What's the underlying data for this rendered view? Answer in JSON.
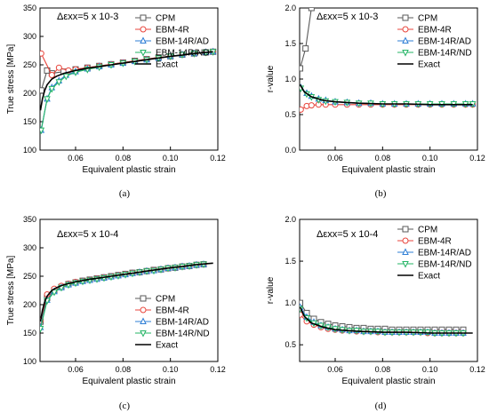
{
  "panel_captions": [
    "(a)",
    "(b)",
    "(c)",
    "(d)"
  ],
  "colors": {
    "CPM": "#5a5a5a",
    "EBM-4R": "#e8453c",
    "EBM-14R/AD": "#2f7fd6",
    "EBM-14R/ND": "#25b566",
    "Exact": "#000000"
  },
  "markers": {
    "CPM": "square",
    "EBM-4R": "circle",
    "EBM-14R/AD": "triangle-up",
    "EBM-14R/ND": "triangle-down",
    "Exact": "none"
  },
  "chart_data": [
    {
      "type": "line",
      "annotation": "Δεxx=5 x 10-3",
      "xlabel": "Equivalent plastic strain",
      "ylabel": "True stress [MPa]",
      "xlim": [
        0.045,
        0.12
      ],
      "ylim": [
        100,
        350
      ],
      "xticks": [
        0.06,
        0.08,
        0.1,
        0.12
      ],
      "xticklabels": [
        "0.06",
        "0.08",
        "0.10",
        "0.12"
      ],
      "yticks": [
        100,
        150,
        200,
        250,
        300,
        350
      ],
      "yticklabels": [
        "100",
        "150",
        "200",
        "250",
        "300",
        "350"
      ],
      "legend": "right",
      "series": [
        {
          "name": "CPM",
          "x": [
            0.0455,
            0.048,
            0.05,
            0.055,
            0.06,
            0.065,
            0.07,
            0.075,
            0.08,
            0.085,
            0.09,
            0.095,
            0.1,
            0.105,
            0.11,
            0.115,
            0.118
          ],
          "y": [
            205,
            240,
            235,
            238,
            242,
            245,
            248,
            251,
            254,
            257,
            260,
            263,
            265,
            268,
            270,
            272,
            273
          ]
        },
        {
          "name": "EBM-4R",
          "x": [
            0.0455,
            0.05,
            0.053,
            0.057,
            0.06,
            0.065,
            0.07,
            0.075,
            0.08,
            0.085,
            0.09,
            0.095,
            0.1,
            0.105,
            0.11,
            0.115,
            0.118
          ],
          "y": [
            270,
            232,
            245,
            240,
            242,
            245,
            248,
            251,
            254,
            257,
            260,
            263,
            265,
            268,
            270,
            272,
            273
          ]
        },
        {
          "name": "EBM-14R/AD",
          "x": [
            0.0455,
            0.048,
            0.05,
            0.053,
            0.056,
            0.06,
            0.065,
            0.07,
            0.075,
            0.08,
            0.085,
            0.09,
            0.095,
            0.1,
            0.105,
            0.11,
            0.115,
            0.118
          ],
          "y": [
            135,
            190,
            210,
            222,
            232,
            238,
            243,
            247,
            250,
            253,
            256,
            259,
            262,
            265,
            268,
            270,
            272,
            273
          ]
        },
        {
          "name": "EBM-14R/ND",
          "x": [
            0.0455,
            0.048,
            0.05,
            0.053,
            0.056,
            0.06,
            0.065,
            0.07,
            0.075,
            0.08,
            0.085,
            0.09,
            0.095,
            0.1,
            0.105,
            0.11,
            0.115,
            0.118
          ],
          "y": [
            135,
            190,
            208,
            220,
            230,
            237,
            242,
            246,
            250,
            253,
            256,
            259,
            262,
            265,
            268,
            270,
            272,
            273
          ]
        },
        {
          "name": "Exact",
          "x": [
            0.0452,
            0.046,
            0.047,
            0.048,
            0.05,
            0.052,
            0.055,
            0.06,
            0.065,
            0.07,
            0.075,
            0.08,
            0.085,
            0.09,
            0.095,
            0.1,
            0.105,
            0.11,
            0.115,
            0.118
          ],
          "y": [
            170,
            190,
            205,
            215,
            225,
            230,
            235,
            240,
            244,
            247,
            250,
            253,
            256,
            259,
            262,
            265,
            267,
            270,
            272,
            273
          ]
        }
      ]
    },
    {
      "type": "line",
      "annotation": "Δεxx=5 x 10-3",
      "xlabel": "Equivalent plastic strain",
      "ylabel": "r-value",
      "xlim": [
        0.045,
        0.12
      ],
      "ylim": [
        0.0,
        2.0
      ],
      "xticks": [
        0.06,
        0.08,
        0.1,
        0.12
      ],
      "xticklabels": [
        "0.06",
        "0.08",
        "0.10",
        "0.12"
      ],
      "yticks": [
        0.0,
        0.5,
        1.0,
        1.5,
        2.0
      ],
      "yticklabels": [
        "0.0",
        "0.5",
        "1.0",
        "1.5",
        "2.0"
      ],
      "legend": "top-right",
      "series": [
        {
          "name": "CPM",
          "x": [
            0.0452,
            0.0475,
            0.05
          ],
          "y": [
            1.15,
            1.43,
            2.0
          ]
        },
        {
          "name": "EBM-4R",
          "x": [
            0.0455,
            0.048,
            0.05,
            0.053,
            0.056,
            0.06,
            0.065,
            0.07,
            0.075,
            0.08,
            0.085,
            0.09,
            0.095,
            0.1,
            0.105,
            0.11,
            0.115,
            0.118
          ],
          "y": [
            0.57,
            0.62,
            0.63,
            0.64,
            0.64,
            0.64,
            0.64,
            0.64,
            0.64,
            0.64,
            0.64,
            0.64,
            0.64,
            0.64,
            0.64,
            0.64,
            0.64,
            0.64
          ]
        },
        {
          "name": "EBM-14R/AD",
          "x": [
            0.0455,
            0.048,
            0.05,
            0.053,
            0.056,
            0.06,
            0.065,
            0.07,
            0.075,
            0.08,
            0.085,
            0.09,
            0.095,
            0.1,
            0.105,
            0.11,
            0.115,
            0.118
          ],
          "y": [
            0.88,
            0.8,
            0.76,
            0.72,
            0.7,
            0.68,
            0.67,
            0.66,
            0.66,
            0.65,
            0.65,
            0.65,
            0.65,
            0.65,
            0.65,
            0.65,
            0.65,
            0.65
          ]
        },
        {
          "name": "EBM-14R/ND",
          "x": [
            0.0455,
            0.048,
            0.05,
            0.053,
            0.056,
            0.06,
            0.065,
            0.07,
            0.075,
            0.08,
            0.085,
            0.09,
            0.095,
            0.1,
            0.105,
            0.11,
            0.115,
            0.118
          ],
          "y": [
            0.87,
            0.79,
            0.75,
            0.71,
            0.69,
            0.68,
            0.67,
            0.66,
            0.66,
            0.65,
            0.65,
            0.65,
            0.65,
            0.65,
            0.65,
            0.65,
            0.65,
            0.65
          ]
        },
        {
          "name": "Exact",
          "x": [
            0.0452,
            0.047,
            0.05,
            0.055,
            0.06,
            0.065,
            0.07,
            0.08,
            0.09,
            0.1,
            0.11,
            0.118
          ],
          "y": [
            0.92,
            0.82,
            0.75,
            0.7,
            0.68,
            0.67,
            0.66,
            0.65,
            0.65,
            0.64,
            0.64,
            0.64
          ]
        }
      ]
    },
    {
      "type": "line",
      "annotation": "Δεxx=5 x 10-4",
      "xlabel": "Equivalent plastic strain",
      "ylabel": "True stress [MPa]",
      "xlim": [
        0.045,
        0.12
      ],
      "ylim": [
        100,
        350
      ],
      "xticks": [
        0.06,
        0.08,
        0.1,
        0.12
      ],
      "xticklabels": [
        "0.06",
        "0.08",
        "0.10",
        "0.12"
      ],
      "yticks": [
        100,
        150,
        200,
        250,
        300,
        350
      ],
      "yticklabels": [
        "100",
        "150",
        "200",
        "250",
        "300",
        "350"
      ],
      "legend": "bottom-right",
      "series": [
        {
          "name": "CPM",
          "x": [
            0.0452,
            0.048,
            0.051,
            0.054,
            0.057,
            0.06,
            0.063,
            0.066,
            0.069,
            0.072,
            0.075,
            0.078,
            0.081,
            0.084,
            0.087,
            0.09,
            0.093,
            0.096,
            0.099,
            0.102,
            0.105,
            0.108,
            0.111,
            0.114
          ],
          "y": [
            170,
            212,
            225,
            231,
            236,
            239,
            242,
            244,
            246,
            248,
            250,
            252,
            254,
            256,
            257,
            259,
            261,
            262,
            264,
            265,
            267,
            268,
            270,
            271
          ]
        },
        {
          "name": "EBM-4R",
          "x": [
            0.0452,
            0.048,
            0.051,
            0.054,
            0.057,
            0.06,
            0.063,
            0.066,
            0.069,
            0.072,
            0.075,
            0.078,
            0.081,
            0.084,
            0.087,
            0.09,
            0.093,
            0.096,
            0.099,
            0.102,
            0.105,
            0.108,
            0.111,
            0.114
          ],
          "y": [
            172,
            218,
            228,
            233,
            237,
            240,
            242,
            244,
            246,
            248,
            250,
            252,
            254,
            256,
            257,
            259,
            261,
            262,
            264,
            265,
            267,
            268,
            270,
            271
          ]
        },
        {
          "name": "EBM-14R/AD",
          "x": [
            0.0452,
            0.048,
            0.051,
            0.054,
            0.057,
            0.06,
            0.063,
            0.066,
            0.069,
            0.072,
            0.075,
            0.078,
            0.081,
            0.084,
            0.087,
            0.09,
            0.093,
            0.096,
            0.099,
            0.102,
            0.105,
            0.108,
            0.111,
            0.114
          ],
          "y": [
            160,
            208,
            223,
            230,
            235,
            238,
            241,
            243,
            245,
            247,
            249,
            251,
            253,
            255,
            257,
            259,
            260,
            262,
            264,
            265,
            267,
            268,
            270,
            271
          ]
        },
        {
          "name": "EBM-14R/ND",
          "x": [
            0.0452,
            0.048,
            0.051,
            0.054,
            0.057,
            0.06,
            0.063,
            0.066,
            0.069,
            0.072,
            0.075,
            0.078,
            0.081,
            0.084,
            0.087,
            0.09,
            0.093,
            0.096,
            0.099,
            0.102,
            0.105,
            0.108,
            0.111,
            0.114
          ],
          "y": [
            158,
            207,
            222,
            230,
            235,
            238,
            241,
            243,
            245,
            247,
            249,
            251,
            253,
            255,
            257,
            259,
            260,
            262,
            264,
            265,
            267,
            268,
            270,
            271
          ]
        },
        {
          "name": "Exact",
          "x": [
            0.0452,
            0.046,
            0.047,
            0.048,
            0.05,
            0.052,
            0.055,
            0.06,
            0.065,
            0.07,
            0.075,
            0.08,
            0.085,
            0.09,
            0.095,
            0.1,
            0.105,
            0.11,
            0.115,
            0.118
          ],
          "y": [
            170,
            190,
            205,
            215,
            225,
            230,
            235,
            240,
            244,
            247,
            250,
            253,
            256,
            259,
            262,
            265,
            267,
            270,
            272,
            273
          ]
        }
      ]
    },
    {
      "type": "line",
      "annotation": "Δεxx=5 x 10-4",
      "xlabel": "Equivalent plastic strain",
      "ylabel": "r-value",
      "xlim": [
        0.045,
        0.12
      ],
      "ylim": [
        0.3,
        2.0
      ],
      "xticks": [
        0.06,
        0.08,
        0.1,
        0.12
      ],
      "xticklabels": [
        "0.06",
        "0.08",
        "0.10",
        "0.12"
      ],
      "yticks": [
        0.5,
        1.0,
        1.5,
        2.0
      ],
      "yticklabels": [
        "0.5",
        "1.0",
        "1.5",
        "2.0"
      ],
      "legend": "top-right",
      "series": [
        {
          "name": "CPM",
          "x": [
            0.0452,
            0.048,
            0.051,
            0.054,
            0.057,
            0.06,
            0.063,
            0.066,
            0.069,
            0.072,
            0.075,
            0.078,
            0.081,
            0.084,
            0.087,
            0.09,
            0.093,
            0.096,
            0.099,
            0.102,
            0.105,
            0.108,
            0.111,
            0.114
          ],
          "y": [
            1.0,
            0.88,
            0.81,
            0.77,
            0.75,
            0.73,
            0.72,
            0.71,
            0.7,
            0.7,
            0.69,
            0.69,
            0.69,
            0.68,
            0.68,
            0.68,
            0.68,
            0.68,
            0.68,
            0.68,
            0.68,
            0.68,
            0.68,
            0.68
          ]
        },
        {
          "name": "EBM-4R",
          "x": [
            0.0452,
            0.048,
            0.051,
            0.054,
            0.057,
            0.06,
            0.063,
            0.066,
            0.069,
            0.072,
            0.075,
            0.078,
            0.081,
            0.084,
            0.087,
            0.09,
            0.093,
            0.096,
            0.099,
            0.102,
            0.105,
            0.108,
            0.111,
            0.114
          ],
          "y": [
            0.86,
            0.78,
            0.74,
            0.71,
            0.69,
            0.68,
            0.67,
            0.67,
            0.66,
            0.66,
            0.66,
            0.65,
            0.65,
            0.65,
            0.65,
            0.65,
            0.65,
            0.65,
            0.64,
            0.64,
            0.64,
            0.64,
            0.64,
            0.64
          ]
        },
        {
          "name": "EBM-14R/AD",
          "x": [
            0.0452,
            0.048,
            0.051,
            0.054,
            0.057,
            0.06,
            0.063,
            0.066,
            0.069,
            0.072,
            0.075,
            0.078,
            0.081,
            0.084,
            0.087,
            0.09,
            0.093,
            0.096,
            0.099,
            0.102,
            0.105,
            0.108,
            0.111,
            0.114
          ],
          "y": [
            0.95,
            0.83,
            0.77,
            0.73,
            0.71,
            0.69,
            0.68,
            0.67,
            0.67,
            0.66,
            0.66,
            0.66,
            0.65,
            0.65,
            0.65,
            0.65,
            0.65,
            0.65,
            0.65,
            0.64,
            0.64,
            0.64,
            0.64,
            0.64
          ]
        },
        {
          "name": "EBM-14R/ND",
          "x": [
            0.0452,
            0.048,
            0.051,
            0.054,
            0.057,
            0.06,
            0.063,
            0.066,
            0.069,
            0.072,
            0.075,
            0.078,
            0.081,
            0.084,
            0.087,
            0.09,
            0.093,
            0.096,
            0.099,
            0.102,
            0.105,
            0.108,
            0.111,
            0.114
          ],
          "y": [
            0.93,
            0.82,
            0.76,
            0.73,
            0.71,
            0.69,
            0.68,
            0.67,
            0.67,
            0.66,
            0.66,
            0.66,
            0.65,
            0.65,
            0.65,
            0.65,
            0.65,
            0.65,
            0.65,
            0.64,
            0.64,
            0.64,
            0.64,
            0.64
          ]
        },
        {
          "name": "Exact",
          "x": [
            0.0452,
            0.047,
            0.05,
            0.055,
            0.06,
            0.065,
            0.07,
            0.08,
            0.09,
            0.1,
            0.11,
            0.118
          ],
          "y": [
            0.95,
            0.84,
            0.76,
            0.71,
            0.68,
            0.67,
            0.66,
            0.65,
            0.65,
            0.64,
            0.64,
            0.64
          ]
        }
      ]
    }
  ]
}
